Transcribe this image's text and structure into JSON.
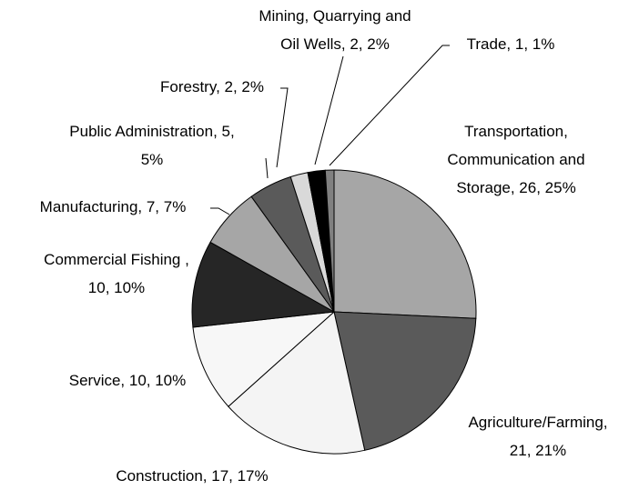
{
  "chart_data": {
    "type": "pie",
    "labels": [
      [
        "Transportation,",
        "Communication and",
        "Storage, 26, 25%"
      ],
      [
        "Agriculture/Farming,",
        "21, 21%"
      ],
      [
        "Construction, 17, 17%"
      ],
      [
        "Service, 10, 10%"
      ],
      [
        "Commercial Fishing ,",
        "10, 10%"
      ],
      [
        "Manufacturing, 7, 7%"
      ],
      [
        "Public Administration, 5,",
        "5%"
      ],
      [
        "Forestry, 2, 2%"
      ],
      [
        "Mining, Quarrying and",
        "Oil Wells, 2, 2%"
      ],
      [
        "Trade, 1, 1%"
      ]
    ],
    "values": [
      26,
      21,
      17,
      10,
      10,
      7,
      5,
      2,
      2,
      1
    ],
    "colors": [
      "#a6a6a6",
      "#5a5a5a",
      "#f4f4f4",
      "#f7f7f7",
      "#262626",
      "#a6a6a6",
      "#5a5a5a",
      "#d9d9d9",
      "#000000",
      "#808080"
    ]
  }
}
